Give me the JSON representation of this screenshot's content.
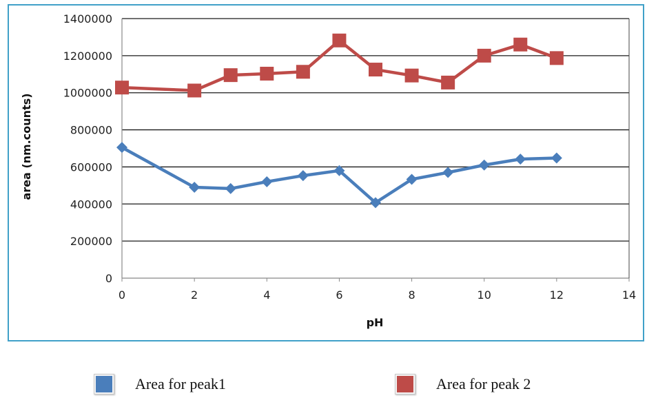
{
  "chart_data": {
    "type": "line",
    "xlabel": "pH",
    "ylabel": "area (nm.counts)",
    "xlim": [
      0,
      14
    ],
    "ylim": [
      0,
      1400000
    ],
    "x_ticks": [
      "0",
      "2",
      "4",
      "6",
      "8",
      "10",
      "12",
      "14"
    ],
    "y_ticks": [
      "0",
      "200000",
      "400000",
      "600000",
      "800000",
      "1000000",
      "1200000",
      "1400000"
    ],
    "grid": "horizontal",
    "legend_position": "bottom",
    "series": [
      {
        "name": "Area for peak1",
        "color": "#4a7ebb",
        "marker": "diamond",
        "x": [
          0,
          2,
          3,
          4,
          5,
          6,
          7,
          8,
          9,
          10,
          11,
          12
        ],
        "y": [
          705000,
          490000,
          483000,
          520000,
          553000,
          580000,
          407000,
          533000,
          570000,
          610000,
          642000,
          648000
        ]
      },
      {
        "name": "Area for peak 2",
        "color": "#be4b48",
        "marker": "square",
        "x": [
          0,
          2,
          3,
          4,
          5,
          6,
          7,
          8,
          9,
          10,
          11,
          12
        ],
        "y": [
          1028000,
          1012000,
          1095000,
          1103000,
          1113000,
          1282000,
          1125000,
          1093000,
          1055000,
          1200000,
          1260000,
          1187000
        ]
      }
    ]
  }
}
